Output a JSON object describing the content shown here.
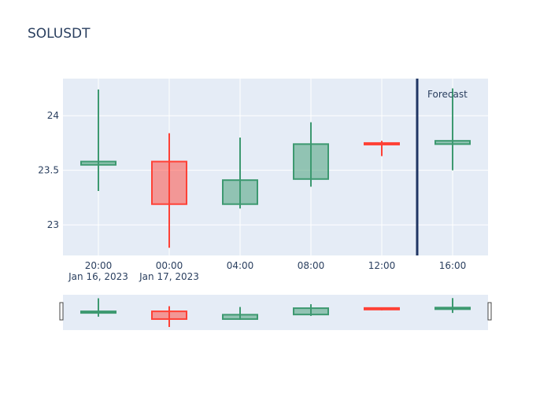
{
  "chart_data": {
    "type": "candlestick",
    "title": "SOLUSDT",
    "x_ticks": [
      {
        "label": "20:00",
        "sublabel": "Jan 16, 2023"
      },
      {
        "label": "00:00",
        "sublabel": "Jan 17, 2023"
      },
      {
        "label": "04:00",
        "sublabel": ""
      },
      {
        "label": "08:00",
        "sublabel": ""
      },
      {
        "label": "12:00",
        "sublabel": ""
      },
      {
        "label": "16:00",
        "sublabel": ""
      }
    ],
    "y_ticks": [
      23,
      23.5,
      24
    ],
    "ylim": [
      22.72,
      24.34
    ],
    "candles": [
      {
        "time": "2023-01-16 20:00",
        "open": 23.55,
        "high": 24.24,
        "low": 23.31,
        "close": 23.58
      },
      {
        "time": "2023-01-17 00:00",
        "open": 23.58,
        "high": 23.84,
        "low": 22.79,
        "close": 23.19
      },
      {
        "time": "2023-01-17 04:00",
        "open": 23.19,
        "high": 23.8,
        "low": 23.15,
        "close": 23.41
      },
      {
        "time": "2023-01-17 08:00",
        "open": 23.42,
        "high": 23.94,
        "low": 23.35,
        "close": 23.74
      },
      {
        "time": "2023-01-17 12:00",
        "open": 23.75,
        "high": 23.77,
        "low": 23.63,
        "close": 23.74
      },
      {
        "time": "2023-01-17 16:00",
        "open": 23.74,
        "high": 24.25,
        "low": 23.5,
        "close": 23.77
      }
    ],
    "forecast_line": {
      "time": "2023-01-17 14:00",
      "label": "Forecast"
    },
    "colors": {
      "increasing": "#3d9970",
      "decreasing": "#ff4136",
      "plot_bg": "#e5ecf6",
      "forecast_line": "#1f3563"
    },
    "rangeslider": true,
    "grid": true
  }
}
